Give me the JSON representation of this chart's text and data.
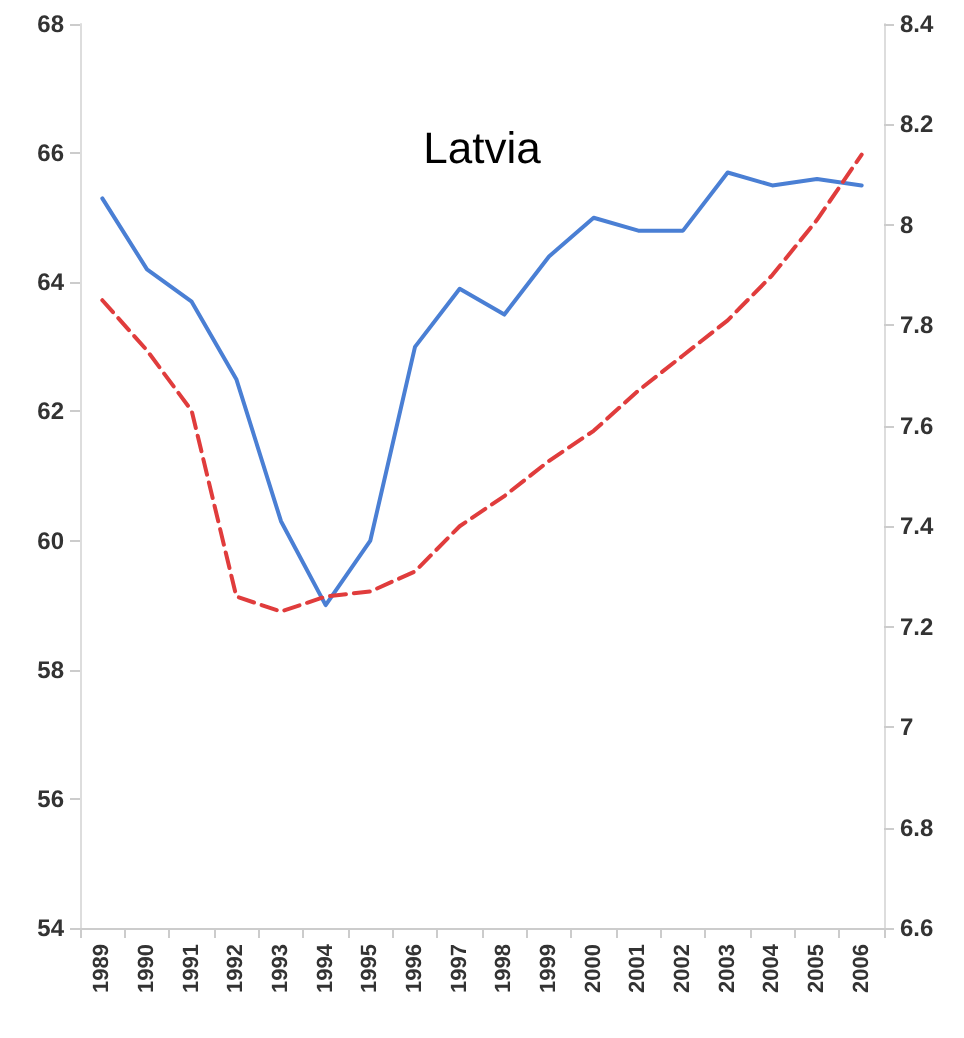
{
  "chart_data": {
    "type": "line",
    "title": "Latvia",
    "categories": [
      "1989",
      "1990",
      "1991",
      "1992",
      "1993",
      "1994",
      "1995",
      "1996",
      "1997",
      "1998",
      "1999",
      "2000",
      "2001",
      "2002",
      "2003",
      "2004",
      "2005",
      "2006"
    ],
    "series": [
      {
        "color": "#4a7fd4",
        "line_style": "solid",
        "values": [
          65.3,
          64.2,
          63.7,
          62.5,
          60.3,
          59.0,
          60.0,
          63.0,
          63.9,
          63.5,
          64.4,
          65.0,
          64.8,
          64.8,
          65.7,
          65.5,
          65.6,
          65.5
        ]
      },
      {
        "color": "#e03c3c",
        "line_style": "dashed",
        "axis": "y2",
        "values": [
          7.85,
          7.75,
          7.63,
          7.26,
          7.23,
          7.26,
          7.27,
          7.31,
          7.4,
          7.46,
          7.53,
          7.59,
          7.67,
          7.74,
          7.81,
          7.9,
          8.01,
          8.14
        ]
      }
    ],
    "ylim": [
      54,
      68
    ],
    "yticks": [
      54,
      56,
      58,
      60,
      62,
      64,
      66,
      68
    ],
    "y2lim": [
      6.6,
      8.4
    ],
    "y2ticks": [
      6.6,
      6.8,
      7,
      7.2,
      7.4,
      7.6,
      7.8,
      8,
      8.2,
      8.4
    ],
    "grid": false,
    "marker": "none"
  }
}
